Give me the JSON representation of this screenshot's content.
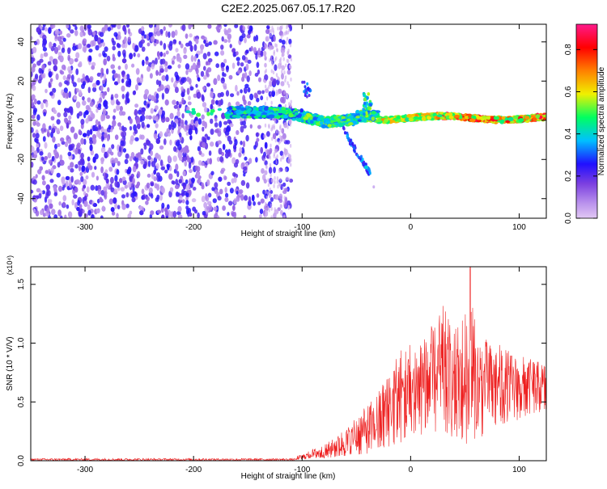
{
  "figure": {
    "title": "C2E2.2025.067.05.17.R20"
  },
  "chart_data": [
    {
      "type": "heatmap",
      "title": "C2E2.2025.067.05.17.R20",
      "xlabel": "Height of straight line (km)",
      "ylabel": "Frequency (Hz)",
      "xlim": [
        -350,
        125
      ],
      "ylim": [
        -50,
        49
      ],
      "x_ticks": [
        -300,
        -200,
        -100,
        0,
        100
      ],
      "y_ticks": [
        -40,
        -20,
        0,
        20,
        40
      ],
      "grid": false,
      "colorbar": {
        "label": "Normalized spectral amplitude",
        "range": [
          0.0,
          0.92
        ],
        "ticks": [
          0.0,
          0.2,
          0.4,
          0.6,
          0.8
        ],
        "colormap": [
          "#e2c8f4",
          "#7a3ee0",
          "#2010ff",
          "#00c0ff",
          "#00ff60",
          "#f0f000",
          "#ff8000",
          "#ff0000",
          "#ff1a8c"
        ]
      },
      "description_regions": [
        {
          "x_range": [
            -350,
            -110
          ],
          "freq_range": [
            -50,
            49
          ],
          "level": "low, scattered noise"
        },
        {
          "x_range": [
            -160,
            -30
          ],
          "freq_center": 3,
          "level": "medium, descending trace"
        },
        {
          "x_range": [
            -30,
            125
          ],
          "freq_center": 1,
          "level": "high, narrow band near 0 Hz"
        }
      ]
    },
    {
      "type": "line",
      "xlabel": "Height of straight line (km)",
      "ylabel": "SNR (10 * V/V)",
      "y_multiplier": "(x10⁴)",
      "xlim": [
        -350,
        125
      ],
      "ylim": [
        0,
        1.65
      ],
      "x_ticks": [
        -300,
        -200,
        -100,
        0,
        100
      ],
      "y_ticks": [
        0.0,
        0.5,
        1.0,
        1.5
      ],
      "y_tick_labels": [
        "0.0",
        "0.5",
        "1.0",
        "1.5"
      ],
      "grid": false,
      "color": "#ee2222",
      "envelope": {
        "x": [
          -350,
          -120,
          -100,
          -90,
          -80,
          -70,
          -60,
          -50,
          -40,
          -30,
          -20,
          -10,
          0,
          10,
          20,
          30,
          40,
          50,
          55,
          60,
          70,
          80,
          90,
          100,
          110,
          125
        ],
        "y_max": [
          0.02,
          0.02,
          0.05,
          0.1,
          0.13,
          0.2,
          0.28,
          0.38,
          0.47,
          0.58,
          0.8,
          0.95,
          1.02,
          1.08,
          1.15,
          1.32,
          1.1,
          1.28,
          1.65,
          1.1,
          1.05,
          1.0,
          0.95,
          0.9,
          0.87,
          0.82
        ],
        "y_min": [
          0.0,
          0.0,
          0.01,
          0.02,
          0.02,
          0.03,
          0.04,
          0.05,
          0.06,
          0.08,
          0.12,
          0.15,
          0.2,
          0.22,
          0.25,
          0.22,
          0.2,
          0.1,
          0.2,
          0.15,
          0.25,
          0.3,
          0.32,
          0.35,
          0.4,
          0.42
        ]
      }
    }
  ]
}
